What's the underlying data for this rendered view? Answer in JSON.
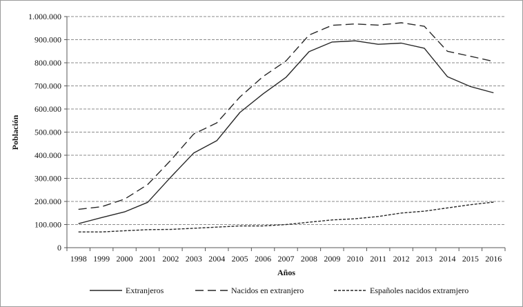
{
  "chart_data": {
    "type": "line",
    "title": "",
    "xlabel": "Años",
    "ylabel": "Población",
    "ylim": [
      0,
      1000000
    ],
    "yticks": [
      0,
      100000,
      200000,
      300000,
      400000,
      500000,
      600000,
      700000,
      800000,
      900000,
      1000000
    ],
    "ytick_labels": [
      "0",
      "100.000",
      "200.000",
      "300.000",
      "400.000",
      "500.000",
      "600.000",
      "700.000",
      "800.000",
      "900.000",
      "1.000.000"
    ],
    "categories": [
      "1998",
      "1999",
      "2000",
      "2001",
      "2002",
      "2003",
      "2004",
      "2005",
      "2006",
      "2007",
      "2008",
      "2009",
      "2010",
      "2011",
      "2012",
      "2013",
      "2014",
      "2015",
      "2016"
    ],
    "grid": "horizontal dashed",
    "legend": "bottom",
    "series": [
      {
        "name": "Extranjeros",
        "style": "solid",
        "values": [
          104000,
          130000,
          155000,
          196000,
          305000,
          410000,
          463000,
          585000,
          665000,
          737000,
          848000,
          890000,
          895000,
          880000,
          885000,
          863000,
          740000,
          697000,
          670000
        ]
      },
      {
        "name": "Nacidos en extranjero",
        "style": "long-dash",
        "values": [
          166000,
          177000,
          210000,
          273000,
          378000,
          492000,
          540000,
          652000,
          740000,
          808000,
          920000,
          962000,
          968000,
          963000,
          973000,
          958000,
          850000,
          828000,
          806000
        ]
      },
      {
        "name": "Españoles nacidos extramjero",
        "style": "short-dash",
        "values": [
          68000,
          68000,
          73000,
          78000,
          79000,
          84000,
          89000,
          94000,
          94000,
          100000,
          110000,
          120000,
          125000,
          135000,
          150000,
          158000,
          172000,
          186000,
          197000
        ]
      }
    ]
  },
  "colors": {
    "line": "#262626",
    "grid": "#8a8a8a",
    "axis": "#555555"
  }
}
